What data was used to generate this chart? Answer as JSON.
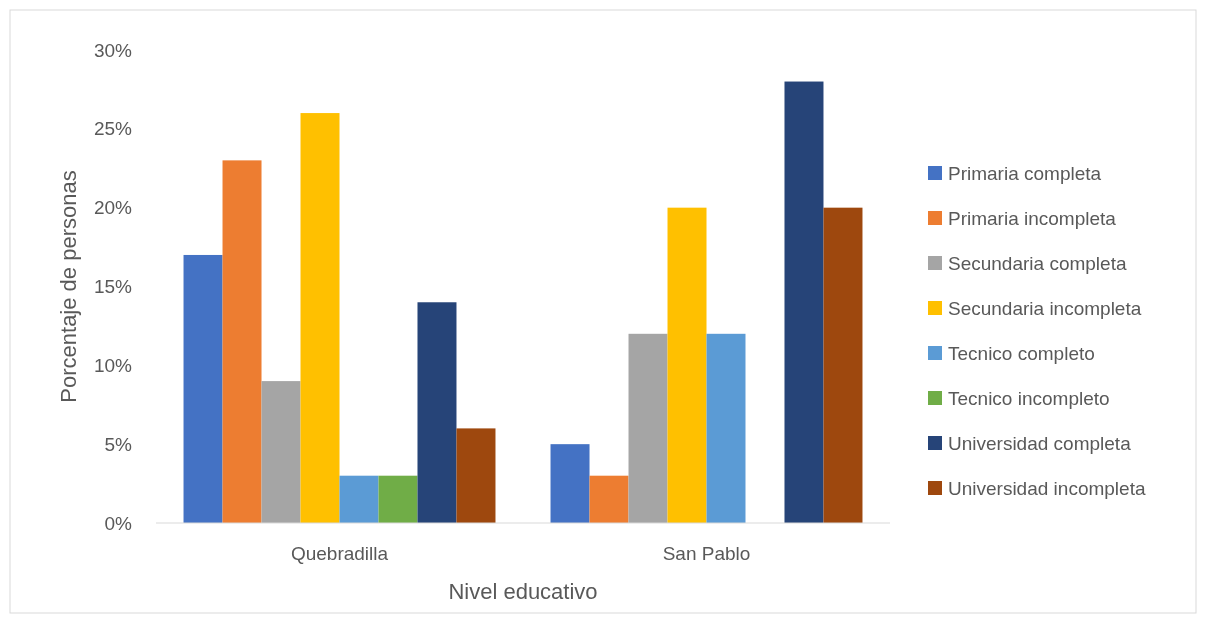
{
  "chart_data": {
    "type": "bar",
    "xlabel": "Nivel educativo",
    "ylabel": "Porcentaje de personas",
    "categories": [
      "Quebradilla",
      "San Pablo"
    ],
    "series": [
      {
        "name": "Primaria completa",
        "color": "#4472c4",
        "values": [
          17,
          5
        ]
      },
      {
        "name": "Primaria incompleta",
        "color": "#ed7d31",
        "values": [
          23,
          3
        ]
      },
      {
        "name": "Secundaria completa",
        "color": "#a5a5a5",
        "values": [
          9,
          12
        ]
      },
      {
        "name": "Secundaria incompleta",
        "color": "#ffc000",
        "values": [
          26,
          20
        ]
      },
      {
        "name": "Tecnico completo",
        "color": "#5b9bd5",
        "values": [
          3,
          12
        ]
      },
      {
        "name": "Tecnico incompleto",
        "color": "#70ad47",
        "values": [
          3,
          0
        ]
      },
      {
        "name": "Universidad completa",
        "color": "#264478",
        "values": [
          14,
          28
        ]
      },
      {
        "name": "Universidad incompleta",
        "color": "#9e480e",
        "values": [
          6,
          20
        ]
      }
    ],
    "ylim": [
      0,
      30
    ],
    "yticks": [
      {
        "value": 0,
        "label": "0%"
      },
      {
        "value": 5,
        "label": "5%"
      },
      {
        "value": 10,
        "label": "10%"
      },
      {
        "value": 15,
        "label": "15%"
      },
      {
        "value": 20,
        "label": "20%"
      },
      {
        "value": 25,
        "label": "25%"
      },
      {
        "value": 30,
        "label": "30%"
      }
    ],
    "grid": false,
    "legend": "right"
  }
}
